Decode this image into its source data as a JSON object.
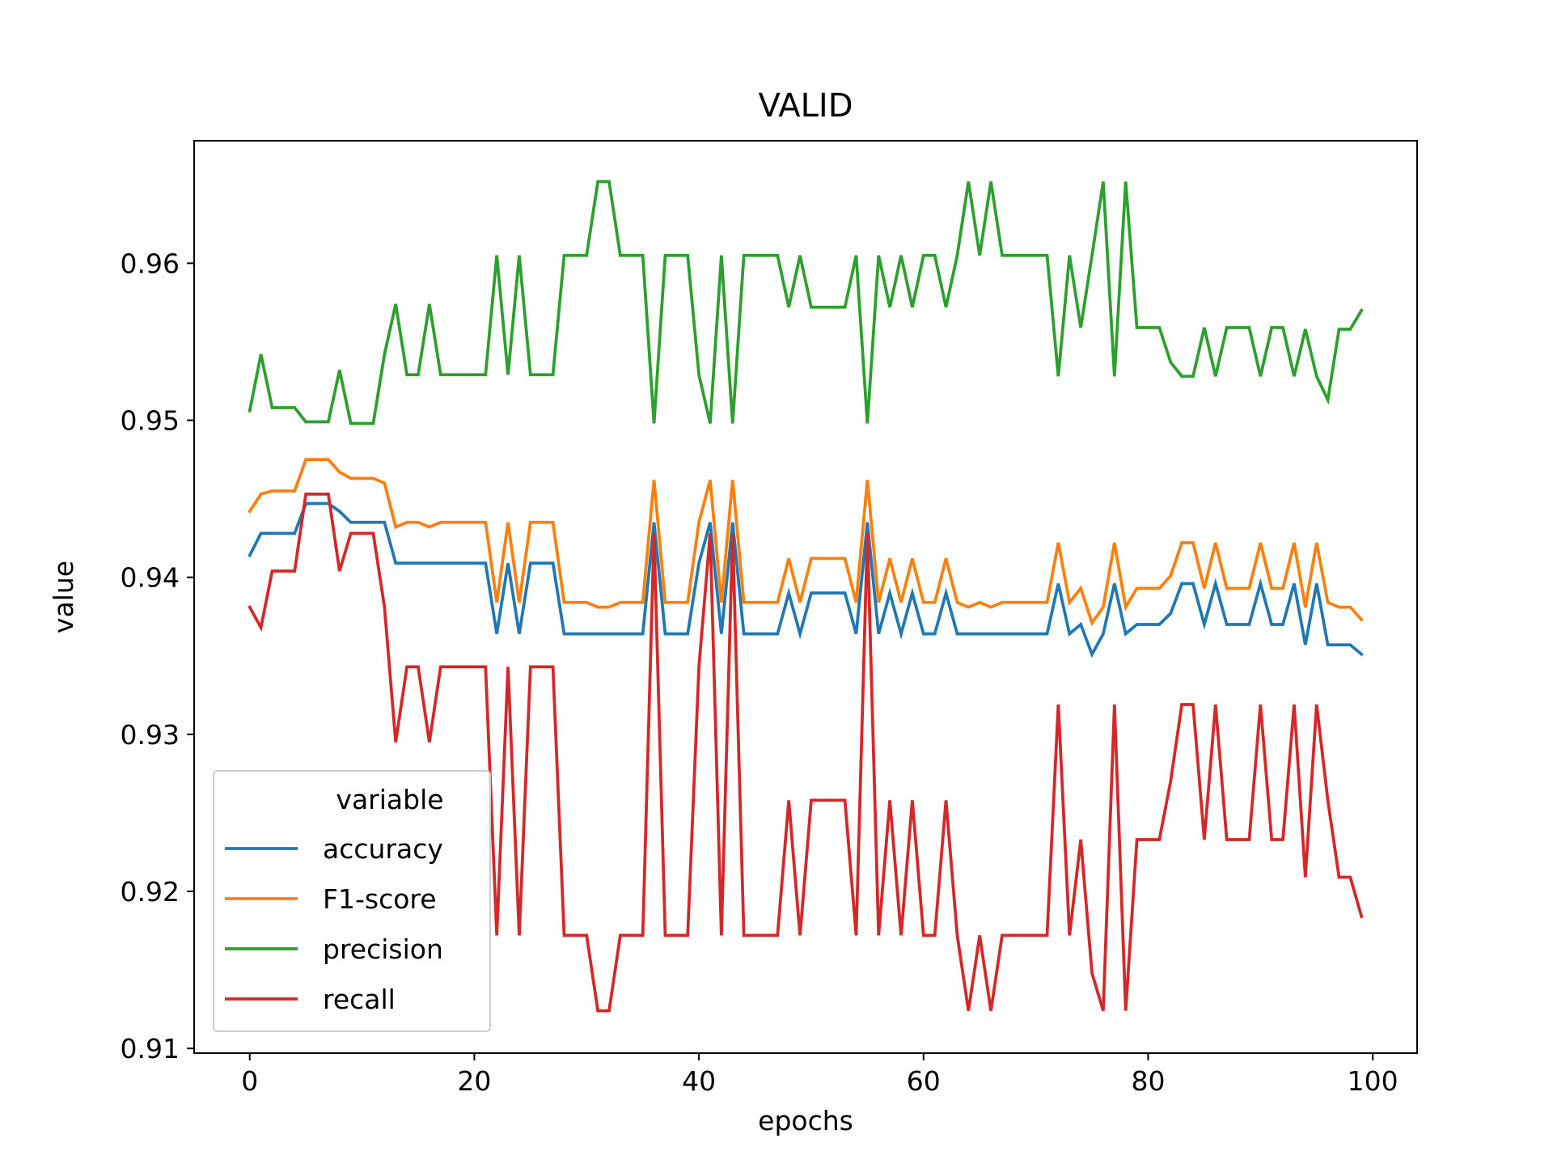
{
  "chart_data": {
    "type": "line",
    "title": "VALID",
    "xlabel": "epochs",
    "ylabel": "value",
    "xlim": [
      -4.95,
      103.95
    ],
    "ylim": [
      0.9097,
      0.9678
    ],
    "xticks": [
      0,
      20,
      40,
      60,
      80,
      100
    ],
    "xtick_labels": [
      "0",
      "20",
      "40",
      "60",
      "80",
      "100"
    ],
    "yticks": [
      0.91,
      0.92,
      0.93,
      0.94,
      0.95,
      0.96
    ],
    "ytick_labels": [
      "0.91",
      "0.92",
      "0.93",
      "0.94",
      "0.95",
      "0.96"
    ],
    "grid": false,
    "legend": {
      "title": "variable",
      "placement": "lower-left"
    },
    "series": [
      {
        "name": "accuracy",
        "color": "#1f77b4",
        "values": [
          0.9414,
          0.9428,
          0.9428,
          0.9428,
          0.9428,
          0.9447,
          0.9447,
          0.9447,
          0.9442,
          0.9435,
          0.9435,
          0.9435,
          0.9435,
          0.9409,
          0.9409,
          0.9409,
          0.9409,
          0.9409,
          0.9409,
          0.9409,
          0.9409,
          0.9409,
          0.9364,
          0.9409,
          0.9364,
          0.9409,
          0.9409,
          0.9409,
          0.9364,
          0.9364,
          0.9364,
          0.9364,
          0.9364,
          0.9364,
          0.9364,
          0.9364,
          0.9435,
          0.9364,
          0.9364,
          0.9364,
          0.9409,
          0.9435,
          0.9364,
          0.9435,
          0.9364,
          0.9364,
          0.9364,
          0.9364,
          0.939,
          0.9364,
          0.939,
          0.939,
          0.939,
          0.939,
          0.9364,
          0.9435,
          0.9364,
          0.939,
          0.9364,
          0.939,
          0.9364,
          0.9364,
          0.939,
          0.9364,
          0.9364,
          0.9364,
          0.9364,
          0.9364,
          0.9364,
          0.9364,
          0.9364,
          0.9364,
          0.9396,
          0.9364,
          0.937,
          0.9351,
          0.9364,
          0.9396,
          0.9364,
          0.937,
          0.937,
          0.937,
          0.9377,
          0.9396,
          0.9396,
          0.937,
          0.9396,
          0.937,
          0.937,
          0.937,
          0.9396,
          0.937,
          0.937,
          0.9396,
          0.9357,
          0.9396,
          0.9357,
          0.9357,
          0.9357,
          0.9351
        ]
      },
      {
        "name": "F1-score",
        "color": "#ff7f0e",
        "values": [
          0.9442,
          0.9453,
          0.9455,
          0.9455,
          0.9455,
          0.9475,
          0.9475,
          0.9475,
          0.9467,
          0.9463,
          0.9463,
          0.9463,
          0.946,
          0.9432,
          0.9435,
          0.9435,
          0.9432,
          0.9435,
          0.9435,
          0.9435,
          0.9435,
          0.9435,
          0.9384,
          0.9435,
          0.9384,
          0.9435,
          0.9435,
          0.9435,
          0.9384,
          0.9384,
          0.9384,
          0.9381,
          0.9381,
          0.9384,
          0.9384,
          0.9384,
          0.9462,
          0.9384,
          0.9384,
          0.9384,
          0.9435,
          0.9462,
          0.9384,
          0.9462,
          0.9384,
          0.9384,
          0.9384,
          0.9384,
          0.9412,
          0.9384,
          0.9412,
          0.9412,
          0.9412,
          0.9412,
          0.9384,
          0.9462,
          0.9384,
          0.9412,
          0.9384,
          0.9412,
          0.9384,
          0.9384,
          0.9412,
          0.9384,
          0.9381,
          0.9384,
          0.9381,
          0.9384,
          0.9384,
          0.9384,
          0.9384,
          0.9384,
          0.9422,
          0.9384,
          0.9393,
          0.9371,
          0.9381,
          0.9422,
          0.9381,
          0.9393,
          0.9393,
          0.9393,
          0.9401,
          0.9422,
          0.9422,
          0.9393,
          0.9422,
          0.9393,
          0.9393,
          0.9393,
          0.9422,
          0.9393,
          0.9393,
          0.9422,
          0.9381,
          0.9422,
          0.9384,
          0.9381,
          0.9381,
          0.9373
        ]
      },
      {
        "name": "precision",
        "color": "#2ca02c",
        "values": [
          0.9506,
          0.9542,
          0.9508,
          0.9508,
          0.9508,
          0.9499,
          0.9499,
          0.9499,
          0.9532,
          0.9498,
          0.9498,
          0.9498,
          0.9542,
          0.9574,
          0.9529,
          0.9529,
          0.9574,
          0.9529,
          0.9529,
          0.9529,
          0.9529,
          0.9529,
          0.9605,
          0.9529,
          0.9605,
          0.9529,
          0.9529,
          0.9529,
          0.9605,
          0.9605,
          0.9605,
          0.9652,
          0.9652,
          0.9605,
          0.9605,
          0.9605,
          0.9498,
          0.9605,
          0.9605,
          0.9605,
          0.9529,
          0.9498,
          0.9605,
          0.9498,
          0.9605,
          0.9605,
          0.9605,
          0.9605,
          0.9572,
          0.9605,
          0.9572,
          0.9572,
          0.9572,
          0.9572,
          0.9605,
          0.9498,
          0.9605,
          0.9572,
          0.9605,
          0.9572,
          0.9605,
          0.9605,
          0.9572,
          0.9605,
          0.9652,
          0.9605,
          0.9652,
          0.9605,
          0.9605,
          0.9605,
          0.9605,
          0.9605,
          0.9528,
          0.9605,
          0.9559,
          0.9605,
          0.9652,
          0.9528,
          0.9652,
          0.9559,
          0.9559,
          0.9559,
          0.9537,
          0.9528,
          0.9528,
          0.9559,
          0.9528,
          0.9559,
          0.9559,
          0.9559,
          0.9528,
          0.9559,
          0.9559,
          0.9528,
          0.9558,
          0.9528,
          0.9513,
          0.9558,
          0.9558,
          0.957
        ]
      },
      {
        "name": "recall",
        "color": "#d62728",
        "values": [
          0.9381,
          0.9368,
          0.9404,
          0.9404,
          0.9404,
          0.9453,
          0.9453,
          0.9453,
          0.9404,
          0.9428,
          0.9428,
          0.9428,
          0.9381,
          0.9295,
          0.9343,
          0.9343,
          0.9295,
          0.9343,
          0.9343,
          0.9343,
          0.9343,
          0.9343,
          0.9172,
          0.9343,
          0.9172,
          0.9343,
          0.9343,
          0.9343,
          0.9172,
          0.9172,
          0.9172,
          0.9124,
          0.9124,
          0.9172,
          0.9172,
          0.9172,
          0.9428,
          0.9172,
          0.9172,
          0.9172,
          0.9343,
          0.9428,
          0.9172,
          0.9428,
          0.9172,
          0.9172,
          0.9172,
          0.9172,
          0.9258,
          0.9172,
          0.9258,
          0.9258,
          0.9258,
          0.9258,
          0.9172,
          0.9428,
          0.9172,
          0.9258,
          0.9172,
          0.9258,
          0.9172,
          0.9172,
          0.9258,
          0.9172,
          0.9124,
          0.9172,
          0.9124,
          0.9172,
          0.9172,
          0.9172,
          0.9172,
          0.9172,
          0.9319,
          0.9172,
          0.9233,
          0.9148,
          0.9124,
          0.9319,
          0.9124,
          0.9233,
          0.9233,
          0.9233,
          0.927,
          0.9319,
          0.9319,
          0.9233,
          0.9319,
          0.9233,
          0.9233,
          0.9233,
          0.9319,
          0.9233,
          0.9233,
          0.9319,
          0.9209,
          0.9319,
          0.9258,
          0.9209,
          0.9209,
          0.9184
        ]
      }
    ]
  }
}
